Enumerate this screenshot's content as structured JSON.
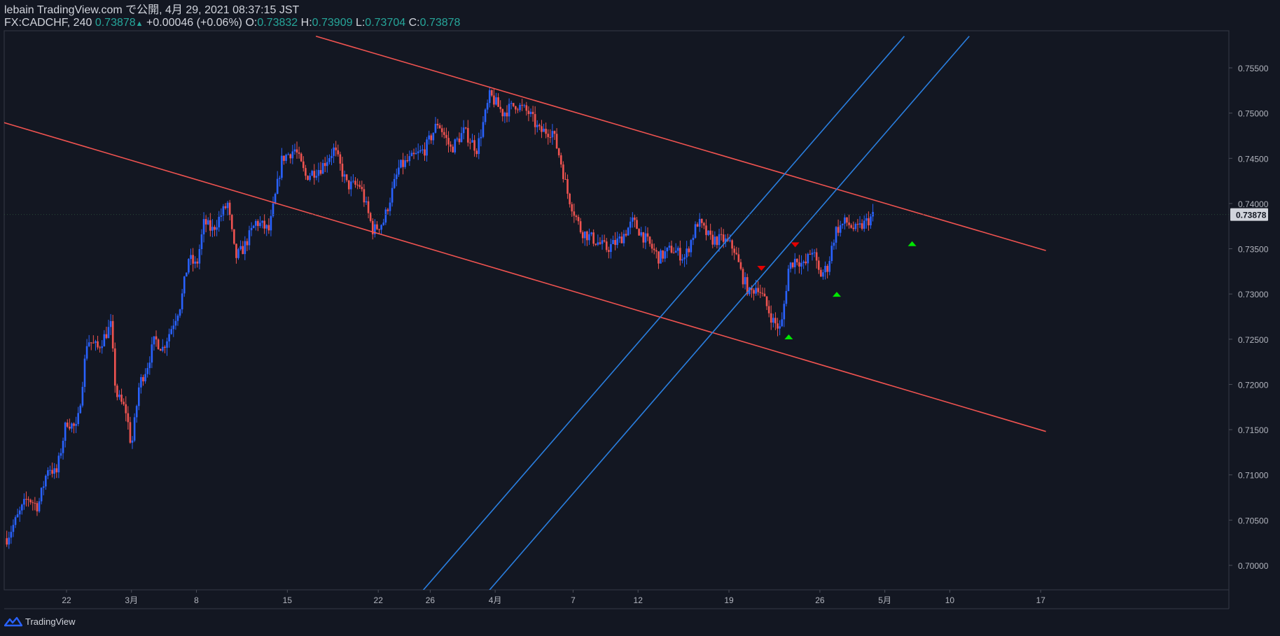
{
  "header": {
    "title": "lebain TradingView.com で公開, 4月 29, 2021 08:37:15 JST",
    "symbol": "FX:CADCHF, 240",
    "last": "0.73878",
    "change": "+0.00046 (+0.06%)",
    "o_label": "O:",
    "o_value": "0.73832",
    "h_label": "H:",
    "h_value": "0.73909",
    "l_label": "L:",
    "l_value": "0.73704",
    "c_label": "C:",
    "c_value": "0.73878"
  },
  "footer": {
    "brand": "TradingView"
  },
  "colors": {
    "background": "#131722",
    "up": "#2962ff",
    "down": "#ef5350",
    "channel_down": "#f05350",
    "channel_up": "#2a7fe0",
    "signal_buy": "#00e600",
    "signal_sell": "#e60000",
    "axis_text": "#b2b5be",
    "price_tag_bg": "#d1d4dc"
  },
  "chart_data": {
    "type": "candlestick",
    "symbol": "FX:CADCHF",
    "interval": "240",
    "current_price": 0.73878,
    "current_price_label": "0.73878",
    "ylim": [
      0.6965,
      0.7585
    ],
    "y_ticks": [
      "0.75500",
      "0.75000",
      "0.74500",
      "0.74000",
      "0.73500",
      "0.73000",
      "0.72500",
      "0.72000",
      "0.71500",
      "0.71000",
      "0.70500",
      "0.70000"
    ],
    "x_ticks": [
      {
        "label": "22",
        "day": 0
      },
      {
        "label": "3月",
        "day": 5
      },
      {
        "label": "8",
        "day": 10
      },
      {
        "label": "15",
        "day": 17
      },
      {
        "label": "22",
        "day": 24
      },
      {
        "label": "26",
        "day": 28
      },
      {
        "label": "4月",
        "day": 33
      },
      {
        "label": "7",
        "day": 39
      },
      {
        "label": "12",
        "day": 44
      },
      {
        "label": "19",
        "day": 51
      },
      {
        "label": "26",
        "day": 58
      },
      {
        "label": "5月",
        "day": 63
      },
      {
        "label": "10",
        "day": 68
      },
      {
        "label": "17",
        "day": 75
      }
    ],
    "path": [
      [
        -4.6,
        0.703
      ],
      [
        -3.0,
        0.7075
      ],
      [
        -2.2,
        0.7065
      ],
      [
        -1.4,
        0.711
      ],
      [
        -0.8,
        0.71
      ],
      [
        0.0,
        0.716
      ],
      [
        0.8,
        0.715
      ],
      [
        1.6,
        0.725
      ],
      [
        2.4,
        0.724
      ],
      [
        3.4,
        0.7265
      ],
      [
        3.8,
        0.719
      ],
      [
        4.6,
        0.717
      ],
      [
        5.0,
        0.713
      ],
      [
        5.6,
        0.72
      ],
      [
        6.2,
        0.722
      ],
      [
        6.8,
        0.725
      ],
      [
        7.4,
        0.724
      ],
      [
        8.0,
        0.726
      ],
      [
        8.8,
        0.729
      ],
      [
        9.4,
        0.734
      ],
      [
        10.0,
        0.733
      ],
      [
        10.6,
        0.738
      ],
      [
        11.2,
        0.737
      ],
      [
        12.4,
        0.74
      ],
      [
        13.0,
        0.734
      ],
      [
        13.6,
        0.735
      ],
      [
        14.6,
        0.738
      ],
      [
        15.6,
        0.737
      ],
      [
        16.6,
        0.745
      ],
      [
        17.6,
        0.746
      ],
      [
        18.4,
        0.743
      ],
      [
        19.6,
        0.744
      ],
      [
        20.6,
        0.746
      ],
      [
        21.6,
        0.742
      ],
      [
        22.6,
        0.742
      ],
      [
        23.6,
        0.737
      ],
      [
        24.4,
        0.738
      ],
      [
        25.6,
        0.744
      ],
      [
        26.6,
        0.745
      ],
      [
        27.6,
        0.746
      ],
      [
        28.6,
        0.749
      ],
      [
        29.6,
        0.746
      ],
      [
        30.6,
        0.748
      ],
      [
        31.6,
        0.746
      ],
      [
        32.6,
        0.752
      ],
      [
        33.6,
        0.75
      ],
      [
        34.6,
        0.751
      ],
      [
        35.6,
        0.75
      ],
      [
        36.4,
        0.748
      ],
      [
        37.4,
        0.748
      ],
      [
        38.0,
        0.745
      ],
      [
        38.6,
        0.741
      ],
      [
        39.6,
        0.737
      ],
      [
        40.6,
        0.736
      ],
      [
        41.6,
        0.735
      ],
      [
        42.6,
        0.736
      ],
      [
        43.6,
        0.738
      ],
      [
        44.6,
        0.736
      ],
      [
        45.6,
        0.734
      ],
      [
        46.6,
        0.735
      ],
      [
        47.6,
        0.734
      ],
      [
        48.6,
        0.738
      ],
      [
        49.6,
        0.736
      ],
      [
        50.6,
        0.736
      ],
      [
        51.4,
        0.735
      ],
      [
        52.0,
        0.732
      ],
      [
        52.6,
        0.73
      ],
      [
        53.2,
        0.731
      ],
      [
        53.8,
        0.729
      ],
      [
        54.4,
        0.727
      ],
      [
        55.0,
        0.726
      ],
      [
        55.6,
        0.733
      ],
      [
        56.2,
        0.734
      ],
      [
        56.8,
        0.733
      ],
      [
        57.4,
        0.735
      ],
      [
        58.0,
        0.732
      ],
      [
        58.6,
        0.733
      ],
      [
        59.2,
        0.737
      ],
      [
        60.0,
        0.738
      ],
      [
        60.8,
        0.737
      ],
      [
        61.6,
        0.738
      ],
      [
        62.2,
        0.7388
      ]
    ],
    "channel_lines": [
      {
        "color": "red",
        "from": [
          -5.4,
          0.7492
        ],
        "to": [
          75.4,
          0.7148
        ]
      },
      {
        "color": "red",
        "from": [
          19.2,
          0.7585
        ],
        "to": [
          75.4,
          0.7348
        ]
      },
      {
        "color": "blue",
        "from": [
          27.0,
          0.6965
        ],
        "to": [
          64.5,
          0.7585
        ]
      },
      {
        "color": "blue",
        "from": [
          32.1,
          0.6965
        ],
        "to": [
          69.5,
          0.7585
        ]
      }
    ],
    "signals": [
      {
        "type": "sell",
        "day": 53.5,
        "price": 0.7328
      },
      {
        "type": "sell",
        "day": 56.1,
        "price": 0.7354
      },
      {
        "type": "buy",
        "day": 55.6,
        "price": 0.7253
      },
      {
        "type": "buy",
        "day": 59.3,
        "price": 0.73
      },
      {
        "type": "buy",
        "day": 65.1,
        "price": 0.7356
      }
    ]
  }
}
